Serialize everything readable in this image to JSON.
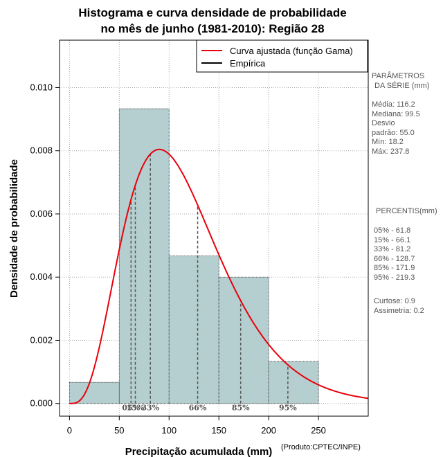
{
  "chart_data": {
    "type": "bar",
    "title_lines": [
      "Histograma e curva densidade de probabilidade",
      "no mês de junho (1981-2010): Região 28"
    ],
    "xlabel": "Precipitação acumulada (mm)",
    "ylabel": "Densidade de probabilidade",
    "xlim": [
      -10,
      300
    ],
    "ylim": [
      -0.0004,
      0.0115
    ],
    "x_ticks": [
      0,
      50,
      100,
      150,
      200,
      250
    ],
    "y_ticks": [
      0.0,
      0.002,
      0.004,
      0.006,
      0.008,
      0.01
    ],
    "y_tick_labels": [
      "0.000",
      "0.002",
      "0.004",
      "0.006",
      "0.008",
      "0.010"
    ],
    "grid": true,
    "bins": [
      {
        "start": 0,
        "end": 50,
        "density": 0.00067
      },
      {
        "start": 50,
        "end": 100,
        "density": 0.00933
      },
      {
        "start": 100,
        "end": 150,
        "density": 0.00467
      },
      {
        "start": 150,
        "end": 200,
        "density": 0.004
      },
      {
        "start": 200,
        "end": 250,
        "density": 0.00133
      }
    ],
    "gamma_fit": {
      "shape": 4.47,
      "scale": 26.0
    },
    "percentile_marks": [
      {
        "label": "05%",
        "value": 61.8
      },
      {
        "label": "15%",
        "value": 66.1
      },
      {
        "label": "33%",
        "value": 81.2
      },
      {
        "label": "66%",
        "value": 128.7
      },
      {
        "label": "85%",
        "value": 171.9
      },
      {
        "label": "95%",
        "value": 219.3
      }
    ],
    "legend": [
      "Curva ajustada (função Gama)",
      "Empírica"
    ],
    "legend_position": "top-right",
    "colors": {
      "bars": "#b5cecf",
      "curve": "#e8000b",
      "grid": "#aaaaaa",
      "percentile": "#555555"
    }
  },
  "stats_panel": {
    "header": [
      "PARÂMETROS",
      "DA SÉRIE (mm)"
    ],
    "lines": [
      "Média:  116.2",
      "Mediana:  99.5",
      "Desvio",
      "padrão:  55.0",
      "Mín:  18.2",
      "Máx:  237.8"
    ]
  },
  "percentiles_panel": {
    "header": "PERCENTIS(mm)",
    "lines": [
      "05% -  61.8",
      "15% -  66.1",
      "33% -  81.2",
      "66% -  128.7",
      "85% -  171.9",
      "95% -  219.3"
    ]
  },
  "shape_panel": {
    "lines": [
      "Curtose:  0.9",
      "Assimetria:  0.2"
    ]
  },
  "credit": "(Produto:CPTEC/INPE)"
}
